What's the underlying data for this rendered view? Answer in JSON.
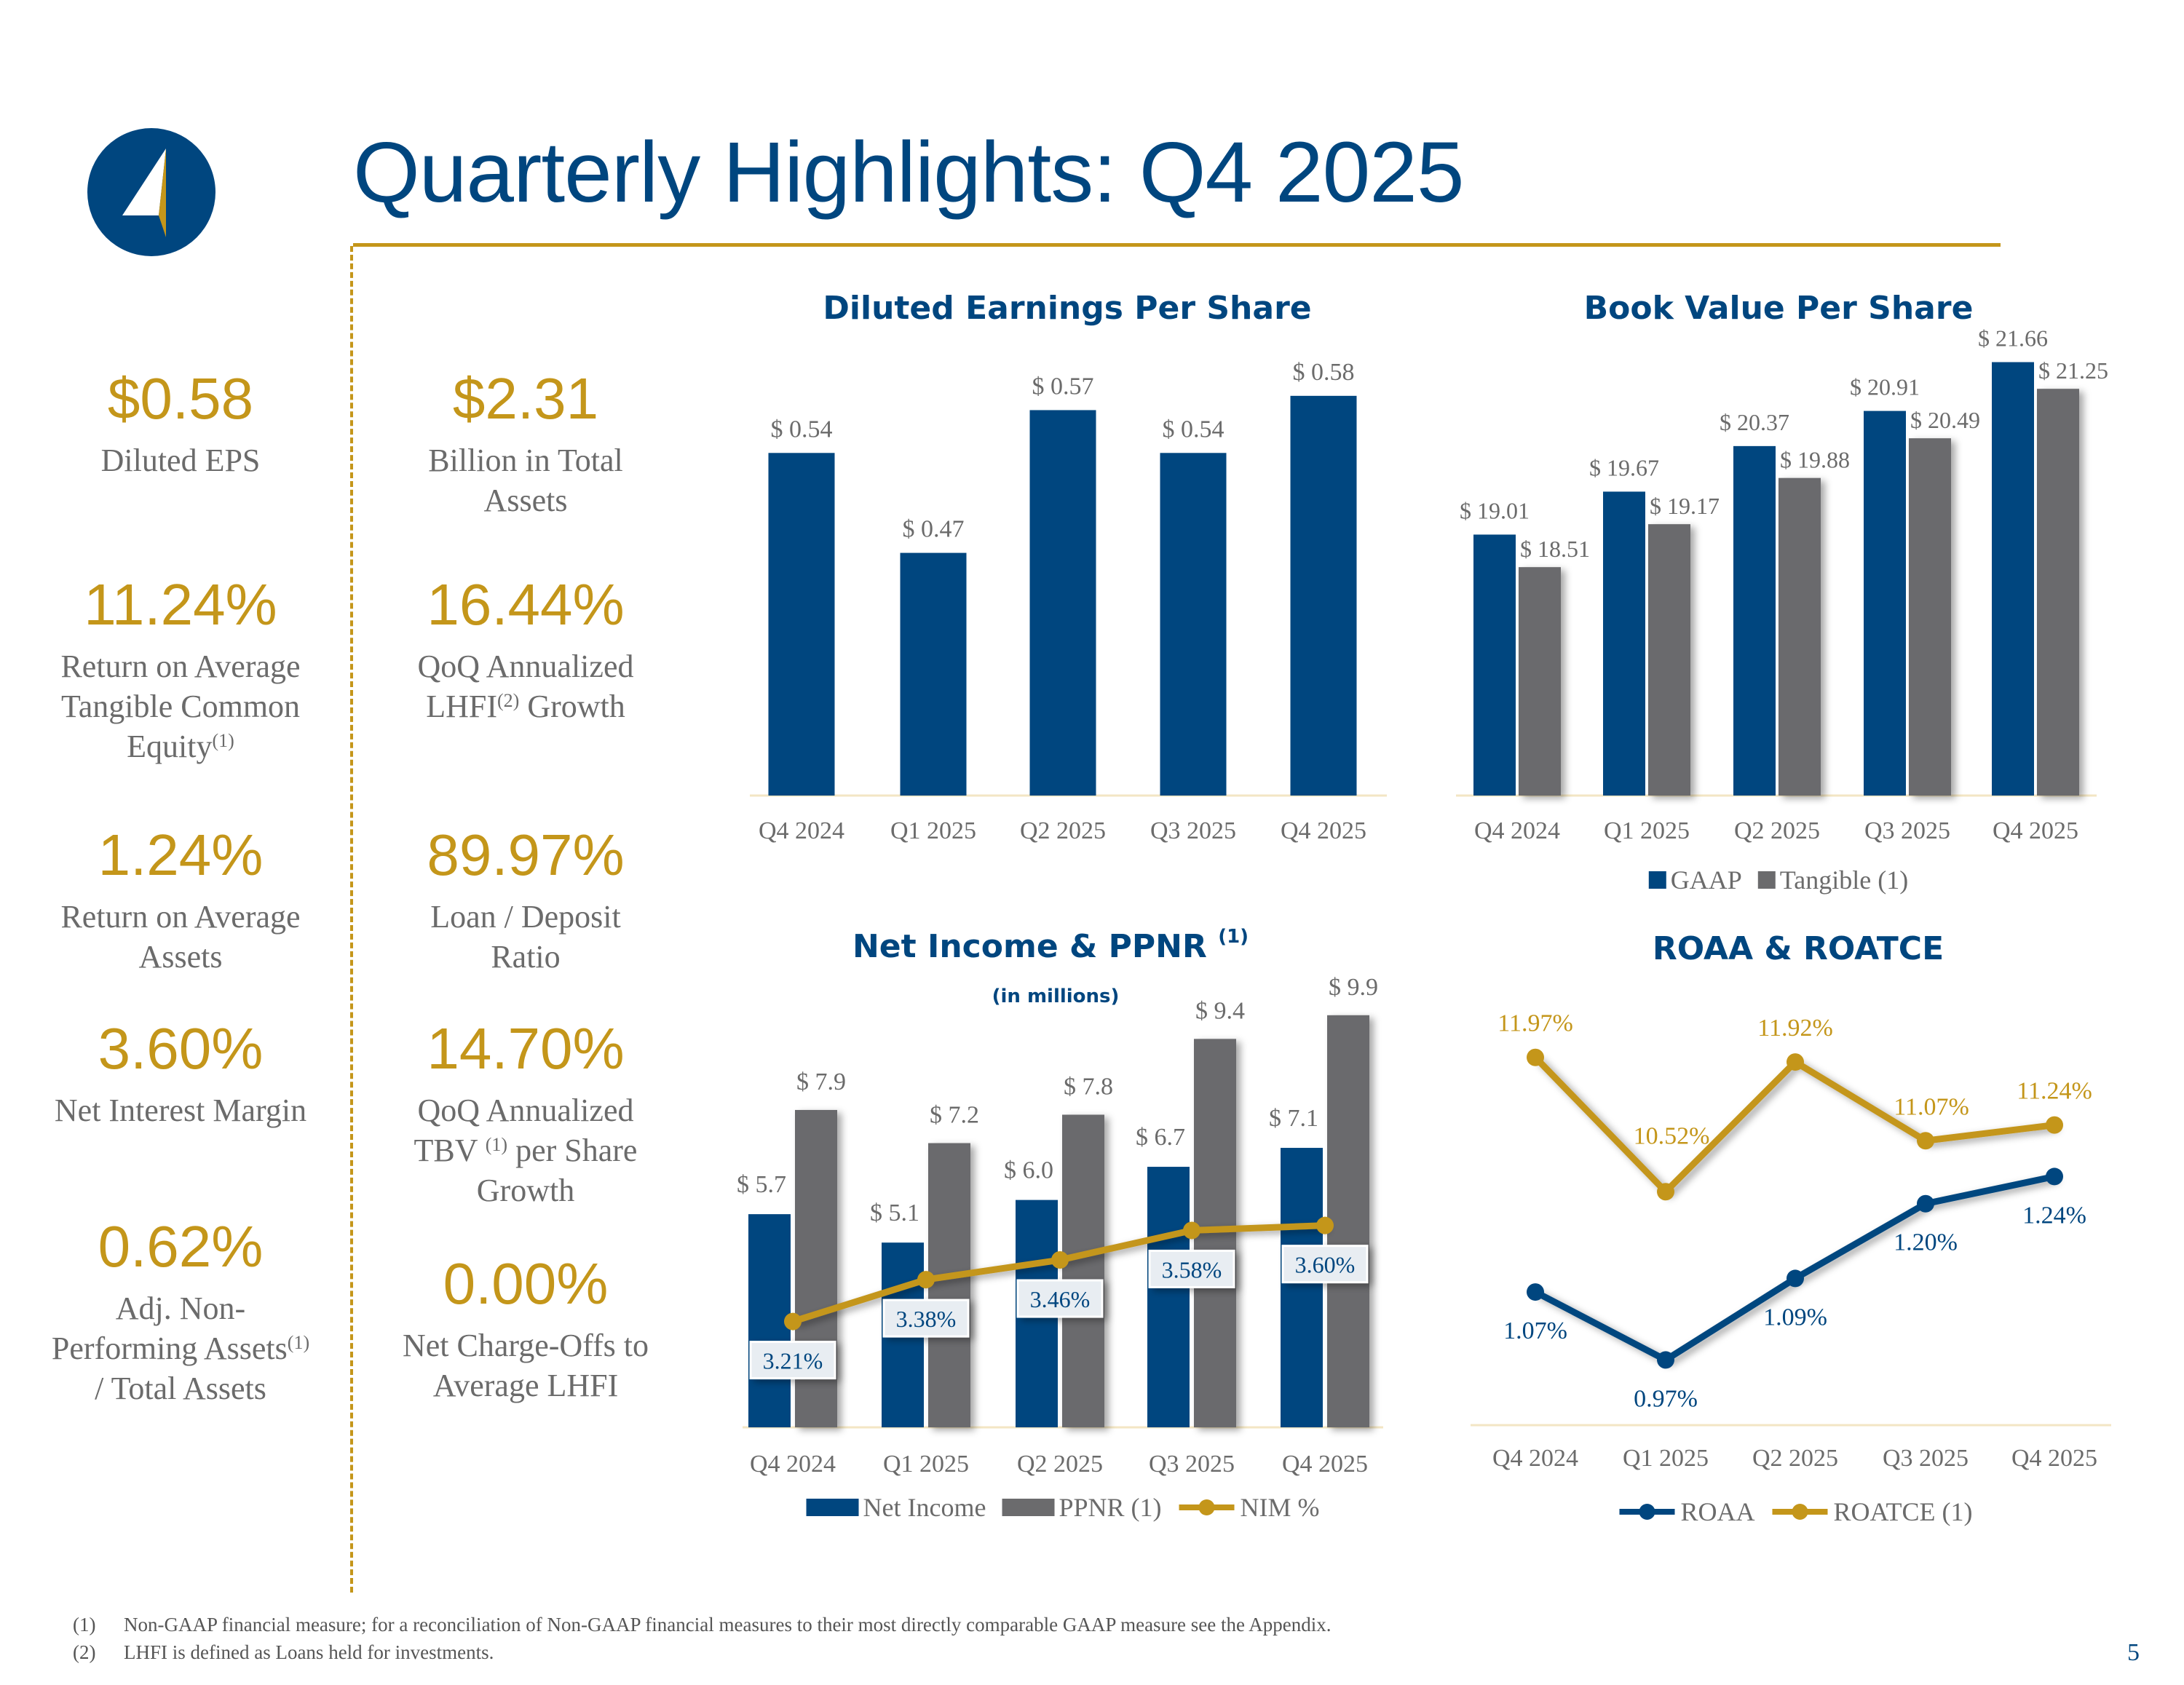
{
  "header": {
    "title": "Quarterly Highlights: Q4 2025",
    "logo": "compass-arrow-logo"
  },
  "colors": {
    "navy": "#00467f",
    "gold": "#c4961a",
    "gray": "#6b6b6d",
    "text_gray": "#6b6b6b"
  },
  "kpis_left": [
    {
      "value": "$0.58",
      "lines": [
        {
          "text": "Diluted EPS"
        }
      ]
    },
    {
      "value": "11.24%",
      "lines": [
        {
          "text": "Return on Average"
        },
        {
          "text": "Tangible Common"
        },
        {
          "text": "Equity",
          "sup": "(1)"
        }
      ]
    },
    {
      "value": "1.24%",
      "lines": [
        {
          "text": "Return on Average"
        },
        {
          "text": "Assets"
        }
      ]
    },
    {
      "value": "3.60%",
      "lines": [
        {
          "text": "Net Interest Margin"
        }
      ]
    },
    {
      "value": "0.62%",
      "lines": [
        {
          "text": "Adj. Non-"
        },
        {
          "text": "Performing Assets",
          "sup": "(1)"
        },
        {
          "text": "/ Total Assets"
        }
      ]
    }
  ],
  "kpis_right": [
    {
      "value": "$2.31",
      "lines": [
        {
          "text": "Billion in Total"
        },
        {
          "text": "Assets"
        }
      ]
    },
    {
      "value": "16.44%",
      "lines": [
        {
          "text": "QoQ Annualized"
        },
        {
          "text": "LHFI",
          "sup": "(2)",
          "after": " Growth"
        }
      ]
    },
    {
      "value": "89.97%",
      "lines": [
        {
          "text": "Loan / Deposit"
        },
        {
          "text": "Ratio"
        }
      ]
    },
    {
      "value": "14.70%",
      "lines": [
        {
          "text": "QoQ Annualized"
        },
        {
          "text": "TBV ",
          "sup": "(1)",
          "after": " per Share"
        },
        {
          "text": "Growth"
        }
      ]
    },
    {
      "value": "0.00%",
      "lines": [
        {
          "text": "Net Charge-Offs to"
        },
        {
          "text": "Average LHFI"
        }
      ]
    }
  ],
  "chart_data": [
    {
      "type": "bar",
      "title": "Diluted Earnings Per Share",
      "categories": [
        "Q4 2024",
        "Q1 2025",
        "Q2 2025",
        "Q3 2025",
        "Q4 2025"
      ],
      "series": [
        {
          "name": "Diluted EPS",
          "values": [
            0.54,
            0.47,
            0.57,
            0.54,
            0.58
          ],
          "labels": [
            "$ 0.54",
            "$ 0.47",
            "$ 0.57",
            "$ 0.54",
            "$ 0.58"
          ]
        }
      ],
      "ylim": [
        0.3,
        0.61
      ],
      "grid": false,
      "legend": "none"
    },
    {
      "type": "bar",
      "title": "Book Value Per Share",
      "categories": [
        "Q4 2024",
        "Q1 2025",
        "Q2 2025",
        "Q3 2025",
        "Q4 2025"
      ],
      "series": [
        {
          "name": "GAAP",
          "values": [
            19.01,
            19.67,
            20.37,
            20.91,
            21.66
          ],
          "labels": [
            "$ 19.01",
            "$ 19.67",
            "$ 20.37",
            "$ 20.91",
            "$ 21.66"
          ]
        },
        {
          "name": "Tangible (1)",
          "values": [
            18.51,
            19.17,
            19.88,
            20.49,
            21.25
          ],
          "labels": [
            "$ 18.51",
            "$ 19.17",
            "$ 19.88",
            "$ 20.49",
            "$ 21.25"
          ]
        }
      ],
      "ylim": [
        15,
        21.8
      ],
      "grid": false,
      "legend": "bottom"
    },
    {
      "type": "bar",
      "title": "Net Income & PPNR",
      "title_sup": "(1)",
      "subtitle": "(in millions)",
      "categories": [
        "Q4 2024",
        "Q1 2025",
        "Q2 2025",
        "Q3 2025",
        "Q4 2025"
      ],
      "series": [
        {
          "name": "Net Income",
          "values": [
            5.7,
            5.1,
            6.0,
            6.7,
            7.1
          ],
          "labels": [
            "$ 5.7",
            "$ 5.1",
            "$ 6.0",
            "$ 6.7",
            "$ 7.1"
          ]
        },
        {
          "name": "PPNR (1)",
          "values": [
            7.9,
            7.2,
            7.8,
            9.4,
            9.9
          ],
          "labels": [
            "$ 7.9",
            "$ 7.2",
            "$ 7.8",
            "$ 9.4",
            "$ 9.9"
          ]
        },
        {
          "name": "NIM %",
          "type": "line",
          "axis": "secondary",
          "values": [
            3.21,
            3.38,
            3.46,
            3.58,
            3.6
          ],
          "labels": [
            "3.21%",
            "3.38%",
            "3.46%",
            "3.58%",
            "3.60%"
          ]
        }
      ],
      "ylim": [
        1.2,
        10.45
      ],
      "y2lim": [
        2.78,
        4.56
      ],
      "grid": false,
      "legend": "bottom"
    },
    {
      "type": "line",
      "title": "ROAA & ROATCE",
      "categories": [
        "Q4 2024",
        "Q1 2025",
        "Q2 2025",
        "Q3 2025",
        "Q4 2025"
      ],
      "series": [
        {
          "name": "ROAA",
          "values": [
            1.07,
            0.97,
            1.09,
            1.2,
            1.24
          ],
          "labels": [
            "1.07%",
            "0.97%",
            "1.09%",
            "1.20%",
            "1.24%"
          ]
        },
        {
          "name": "ROATCE (1)",
          "axis": "secondary",
          "values": [
            11.97,
            10.52,
            11.92,
            11.07,
            11.24
          ],
          "labels": [
            "11.97%",
            "10.52%",
            "11.92%",
            "11.07%",
            "11.24%"
          ]
        }
      ],
      "ylim": [
        0.874,
        1.474
      ],
      "y2lim": [
        8.0,
        12.4
      ],
      "grid": false,
      "legend": "bottom"
    }
  ],
  "footnotes": [
    {
      "marker": "(1)",
      "text": "Non-GAAP financial measure; for a reconciliation of Non-GAAP financial measures to their most directly comparable GAAP measure see the Appendix."
    },
    {
      "marker": "(2)",
      "text": "LHFI is defined as Loans held for investments."
    }
  ],
  "page_number": "5"
}
